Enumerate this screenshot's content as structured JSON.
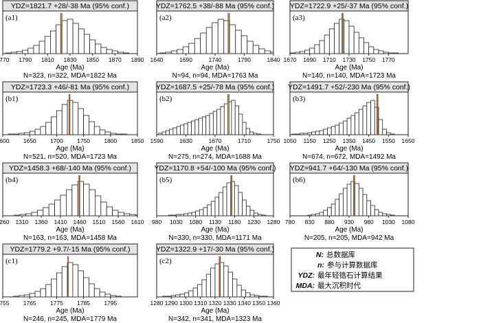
{
  "chart_data": [
    {
      "id": "(a1)",
      "type": "bar",
      "title": "YDZ=1821.7 +28/-38 Ma (95% conf.)",
      "xlabel": "Age (Ma)",
      "caption": "N=323, n=322, MDA=1822 Ma",
      "xlim": [
        1770,
        1890
      ],
      "ticks": [
        1770,
        1790,
        1810,
        1830,
        1850,
        1870,
        1890
      ],
      "bin_width": 5,
      "values": [
        1,
        2,
        3,
        5,
        8,
        12,
        18,
        25,
        33,
        42,
        48,
        50,
        44,
        36,
        28,
        20,
        14,
        9,
        6,
        4,
        2,
        1
      ],
      "x_start": 1772.5,
      "ydz": 1821.7,
      "mda": 1822
    },
    {
      "id": "(a2)",
      "type": "bar",
      "title": "YDZ=1762.5 +38/-88 Ma (95% conf.)",
      "xlabel": "Age (Ma)",
      "caption": "N=94, n=94, MDA=1763 Ma",
      "xlim": [
        1640,
        1840
      ],
      "ticks": [
        1640,
        1690,
        1740,
        1790,
        1840
      ],
      "bin_width": 10,
      "values": [
        1,
        2,
        4,
        6,
        10,
        15,
        22,
        30,
        38,
        45,
        50,
        48,
        42,
        34,
        26,
        18,
        12,
        7,
        4,
        2
      ],
      "x_start": 1645,
      "ydz": 1762.5,
      "mda": 1763
    },
    {
      "id": "(a3)",
      "type": "bar",
      "title": "YDZ=1722.9 +25/-37 Ma (95% conf.)",
      "xlabel": "Age (Ma)",
      "caption": "N=140, n=140, MDA=1723 Ma",
      "xlim": [
        1670,
        1790
      ],
      "ticks": [
        1670,
        1690,
        1710,
        1730,
        1750,
        1770
      ],
      "bin_width": 5,
      "values": [
        1,
        2,
        3,
        5,
        8,
        13,
        19,
        27,
        36,
        44,
        50,
        48,
        40,
        31,
        23,
        16,
        10,
        6,
        4,
        2,
        1,
        1
      ],
      "x_start": 1670,
      "ydz": 1722.9,
      "mda": 1723
    },
    {
      "id": "(b1)",
      "type": "bar",
      "title": "YDZ=1723.3 +46/-81 Ma (95% conf.)",
      "xlabel": "Age (Ma)",
      "caption": "N=521, n=520, MDA=1723 Ma",
      "xlim": [
        1600,
        1850
      ],
      "ticks": [
        1600,
        1650,
        1700,
        1750,
        1800,
        1850
      ],
      "bin_width": 10,
      "values": [
        1,
        1,
        2,
        3,
        5,
        8,
        12,
        18,
        26,
        35,
        44,
        50,
        47,
        38,
        28,
        19,
        12,
        7,
        4,
        2,
        1,
        1
      ],
      "x_start": 1610,
      "ydz": 1723.3,
      "mda": 1723
    },
    {
      "id": "(b2)",
      "type": "bar",
      "title": "YDZ=1687.5 +25/-78 Ma (95% conf.)",
      "xlabel": "Age (Ma)",
      "caption": "N=275, n=274, MDA=1688 Ma",
      "xlim": [
        1590,
        1750
      ],
      "ticks": [
        1590,
        1630,
        1670,
        1710,
        1750
      ],
      "bin_width": 5,
      "values": [
        2,
        4,
        6,
        8,
        10,
        12,
        14,
        16,
        18,
        20,
        22,
        24,
        26,
        28,
        31,
        34,
        37,
        41,
        45,
        48,
        50,
        42,
        30,
        18,
        9,
        4,
        2,
        1
      ],
      "x_start": 1592.5,
      "ydz": 1687.5,
      "mda": 1688
    },
    {
      "id": "(b3)",
      "type": "bar",
      "title": "YDZ=1491.7 +52/-230 Ma (95% conf.)",
      "xlabel": "Age (Ma)",
      "caption": "N=674, n=672, MDA=1492 Ma",
      "xlim": [
        1050,
        1650
      ],
      "ticks": [
        1050,
        1150,
        1250,
        1350,
        1450,
        1550,
        1650
      ],
      "bin_width": 20,
      "values": [
        1,
        1,
        2,
        2,
        3,
        4,
        5,
        6,
        8,
        10,
        12,
        14,
        17,
        20,
        24,
        28,
        32,
        37,
        42,
        47,
        50,
        40,
        22,
        8,
        3,
        1
      ],
      "x_start": 1060,
      "ydz": 1491.7,
      "mda": 1492
    },
    {
      "id": "(b4)",
      "type": "bar",
      "title": "YDZ=1458.3 +68/-140 Ma (95% conf.)",
      "xlabel": "Age (Ma)",
      "caption": "N=163, n=163, MDA=1458 Ma",
      "xlim": [
        1260,
        1610
      ],
      "ticks": [
        1260,
        1310,
        1360,
        1410,
        1460,
        1510,
        1560,
        1610
      ],
      "bin_width": 15,
      "values": [
        1,
        2,
        3,
        5,
        8,
        12,
        17,
        23,
        30,
        38,
        45,
        50,
        46,
        38,
        29,
        20,
        13,
        8,
        5,
        3,
        2,
        1
      ],
      "x_start": 1290,
      "ydz": 1458.3,
      "mda": 1458
    },
    {
      "id": "(b5)",
      "type": "bar",
      "title": "YDZ=1170.8 +54/-100 Ma (95% conf.)",
      "xlabel": "Age (Ma)",
      "caption": "N=330, n=330, MDA=1171 Ma",
      "xlim": [
        980,
        1280
      ],
      "ticks": [
        980,
        1030,
        1080,
        1130,
        1180,
        1230,
        1280
      ],
      "bin_width": 10,
      "values": [
        1,
        1,
        2,
        2,
        3,
        4,
        5,
        7,
        9,
        12,
        16,
        21,
        27,
        34,
        42,
        48,
        50,
        44,
        34,
        23,
        14,
        8,
        4,
        2,
        1
      ],
      "x_start": 1010,
      "ydz": 1170.8,
      "mda": 1171
    },
    {
      "id": "(b6)",
      "type": "bar",
      "title": "YDZ=941.7 +64/-130 Ma (95% conf.)",
      "xlabel": "Age (Ma)",
      "caption": "N=205, n=205, MDA=942 Ma",
      "xlim": [
        780,
        1080
      ],
      "ticks": [
        780,
        830,
        880,
        930,
        980,
        1030,
        1080
      ],
      "bin_width": 10,
      "values": [
        1,
        2,
        3,
        5,
        8,
        12,
        17,
        24,
        32,
        40,
        46,
        50,
        47,
        40,
        31,
        22,
        15,
        9,
        5,
        3,
        2,
        1
      ],
      "x_start": 825,
      "ydz": 941.7,
      "mda": 942
    },
    {
      "id": "(c1)",
      "type": "bar",
      "title": "YDZ=1779.2 +9.7/-15 Ma (95% conf.)",
      "xlabel": "Age (Ma)",
      "caption": "N=246, n=245, MDA=1779 Ma",
      "xlim": [
        1755,
        1805
      ],
      "ticks": [
        1755,
        1765,
        1775,
        1785,
        1795
      ],
      "bin_width": 2,
      "values": [
        1,
        2,
        3,
        5,
        8,
        12,
        18,
        26,
        35,
        44,
        50,
        47,
        38,
        28,
        19,
        12,
        7,
        4,
        2,
        1
      ],
      "x_start": 1759,
      "ydz": 1779.2,
      "mda": 1779
    },
    {
      "id": "(c2)",
      "type": "bar",
      "title": "YDZ=1322.9 +17/-30 Ma (95% conf.)",
      "xlabel": "Age (Ma)",
      "caption": "N=342, n=341, MDA=1323 Ma",
      "xlim": [
        1280,
        1360
      ],
      "ticks": [
        1280,
        1290,
        1300,
        1310,
        1320,
        1330,
        1340,
        1350,
        1360
      ],
      "bin_width": 3,
      "values": [
        1,
        1,
        2,
        3,
        4,
        6,
        9,
        13,
        18,
        25,
        33,
        42,
        48,
        50,
        45,
        36,
        26,
        17,
        10,
        6,
        3,
        2,
        1,
        1
      ],
      "x_start": 1284,
      "ydz": 1322.9,
      "mda": 1323
    }
  ],
  "legend": {
    "items": [
      {
        "key": "N:",
        "text": "总数据库"
      },
      {
        "key": "n:",
        "text": "参与计算数据库"
      },
      {
        "key": "YDZ:",
        "text": "最年轻锆石计算结果"
      },
      {
        "key": "MDA:",
        "text": "最大沉积时代"
      }
    ]
  },
  "colors": {
    "ydz_line": "#d9302c",
    "mda_line": "#2f8f3e",
    "title_fill": "#e3e3e3",
    "bar_fill": "#ffffff",
    "stroke": "#222222"
  }
}
